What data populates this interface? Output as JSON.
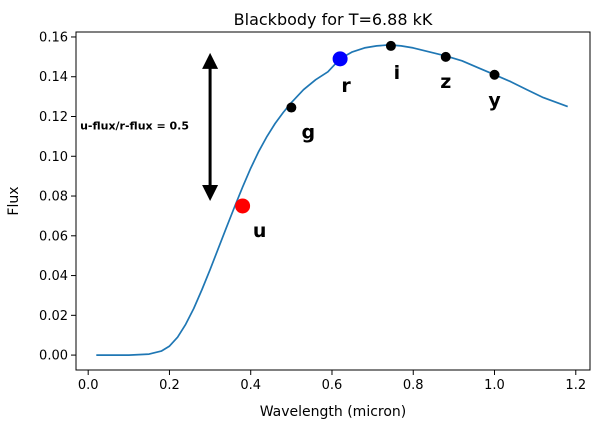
{
  "chart_data": {
    "type": "line",
    "title": "Blackbody for T=6.88 kK",
    "xlabel": "Wavelength (micron)",
    "ylabel": "Flux",
    "xlim": [
      -0.03,
      1.235
    ],
    "ylim": [
      -0.0075,
      0.1625
    ],
    "xticks": [
      0.0,
      0.2,
      0.4,
      0.6,
      0.8,
      1.0,
      1.2
    ],
    "xtick_labels": [
      "0.0",
      "0.2",
      "0.4",
      "0.6",
      "0.8",
      "1.0",
      "1.2"
    ],
    "yticks": [
      0.0,
      0.02,
      0.04,
      0.06,
      0.08,
      0.1,
      0.12,
      0.14,
      0.16
    ],
    "ytick_labels": [
      "0.00",
      "0.02",
      "0.04",
      "0.06",
      "0.08",
      "0.10",
      "0.12",
      "0.14",
      "0.16"
    ],
    "grid": false,
    "line_color": "#1f77b4",
    "series": [
      {
        "x": [
          0.02,
          0.05,
          0.1,
          0.15,
          0.18,
          0.2,
          0.22,
          0.24,
          0.26,
          0.28,
          0.3,
          0.32,
          0.34,
          0.36,
          0.38,
          0.4,
          0.42,
          0.44,
          0.46,
          0.48,
          0.5,
          0.53,
          0.56,
          0.59,
          0.62,
          0.65,
          0.68,
          0.71,
          0.74,
          0.77,
          0.8,
          0.84,
          0.88,
          0.92,
          0.96,
          1.0,
          1.04,
          1.08,
          1.12,
          1.18
        ],
        "y": [
          0.0,
          0.0,
          0.0,
          0.0005,
          0.002,
          0.0045,
          0.009,
          0.0155,
          0.0235,
          0.033,
          0.043,
          0.0535,
          0.064,
          0.0745,
          0.0845,
          0.094,
          0.1025,
          0.11,
          0.1165,
          0.122,
          0.127,
          0.1335,
          0.1385,
          0.1425,
          0.149,
          0.1525,
          0.1545,
          0.1555,
          0.156,
          0.1555,
          0.1545,
          0.1525,
          0.1505,
          0.148,
          0.1445,
          0.141,
          0.1375,
          0.1335,
          0.1295,
          0.125
        ]
      }
    ],
    "points": [
      {
        "label": "u",
        "x": 0.38,
        "y": 0.075,
        "color": "#ff0000",
        "size": "large"
      },
      {
        "label": "g",
        "x": 0.5,
        "y": 0.1245,
        "color": "#000000",
        "size": "small"
      },
      {
        "label": "r",
        "x": 0.62,
        "y": 0.149,
        "color": "#0000ff",
        "size": "large"
      },
      {
        "label": "i",
        "x": 0.745,
        "y": 0.1555,
        "color": "#000000",
        "size": "small"
      },
      {
        "label": "z",
        "x": 0.88,
        "y": 0.15,
        "color": "#000000",
        "size": "small"
      },
      {
        "label": "y",
        "x": 1.0,
        "y": 0.141,
        "color": "#000000",
        "size": "small"
      }
    ],
    "annotation": {
      "text": "u-flux/r-flux = 0.5",
      "arrow_x": 0.3,
      "arrow_y_top": 0.152,
      "arrow_y_bottom": 0.0775,
      "text_x": -0.02,
      "text_y": 0.1135
    }
  }
}
